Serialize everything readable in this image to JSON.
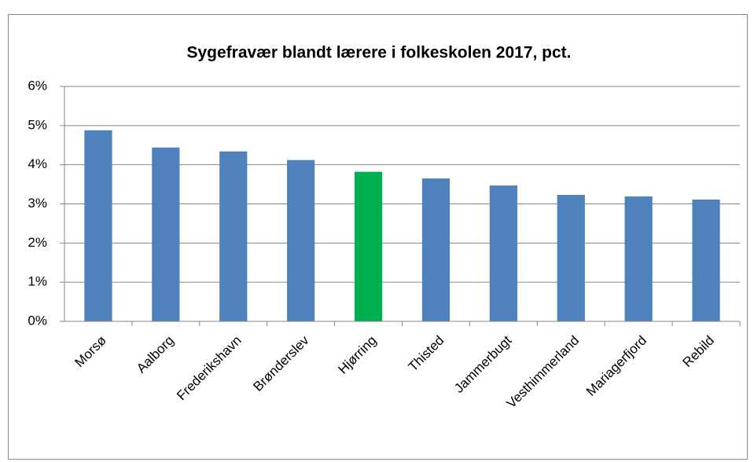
{
  "chart_data": {
    "type": "bar",
    "title": "Sygefravær blandt lærere i folkeskolen 2017, pct.",
    "categories": [
      "Morsø",
      "Aalborg",
      "Frederikshavn",
      "Brønderslev",
      "Hjørring",
      "Thisted",
      "Jammerbugt",
      "Vesthimmerland",
      "Mariagerfjord",
      "Rebild"
    ],
    "values": [
      4.88,
      4.44,
      4.34,
      4.12,
      3.82,
      3.65,
      3.47,
      3.23,
      3.19,
      3.11
    ],
    "colors": [
      "#4f81bd",
      "#4f81bd",
      "#4f81bd",
      "#4f81bd",
      "#00b050",
      "#4f81bd",
      "#4f81bd",
      "#4f81bd",
      "#4f81bd",
      "#4f81bd"
    ],
    "ylim": [
      0,
      6
    ],
    "yticks": [
      {
        "value": 0,
        "label": "0%"
      },
      {
        "value": 1,
        "label": "1%"
      },
      {
        "value": 2,
        "label": "2%"
      },
      {
        "value": 3,
        "label": "3%"
      },
      {
        "value": 4,
        "label": "4%"
      },
      {
        "value": 5,
        "label": "5%"
      },
      {
        "value": 6,
        "label": "6%"
      }
    ],
    "grid": true
  }
}
